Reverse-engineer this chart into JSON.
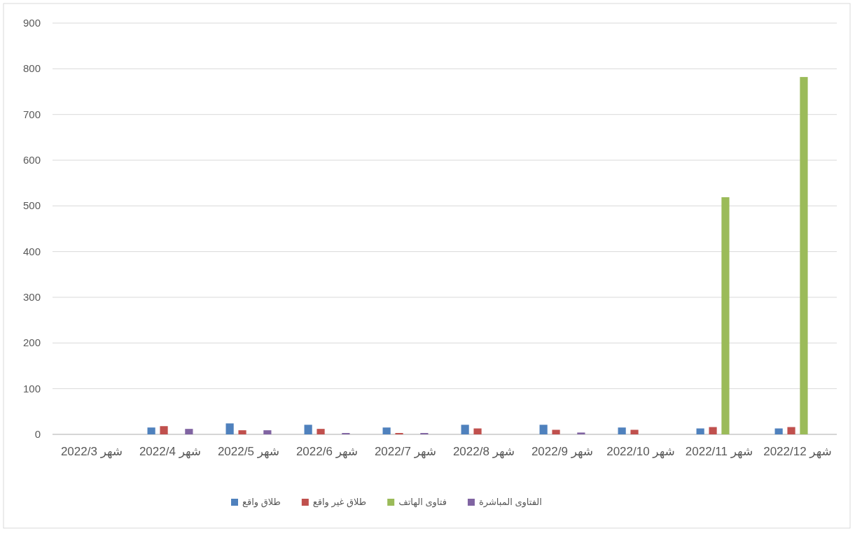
{
  "chart_data": {
    "type": "bar",
    "categories": [
      "شهر 2022/3",
      "شهر 2022/4",
      "شهر 2022/5",
      "شهر 2022/6",
      "شهر 2022/7",
      "شهر 2022/8",
      "شهر 2022/9",
      "شهر 2022/10",
      "شهر 2022/11",
      "شهر 2022/12"
    ],
    "series": [
      {
        "name": "طلاق واقع",
        "color": "#4f81bd",
        "values": [
          null,
          15,
          24,
          21,
          15,
          21,
          21,
          15,
          13,
          13
        ]
      },
      {
        "name": "طلاق غير واقع",
        "color": "#c0504d",
        "values": [
          null,
          18,
          9,
          12,
          3,
          13,
          10,
          10,
          16,
          16
        ]
      },
      {
        "name": "فتاوى الهاتف",
        "color": "#9bbb59",
        "values": [
          null,
          null,
          null,
          null,
          null,
          null,
          null,
          null,
          519,
          782
        ]
      },
      {
        "name": "الفتاوى المباشرة",
        "color": "#8064a2",
        "values": [
          null,
          12,
          9,
          3,
          3,
          null,
          4,
          null,
          null,
          null
        ]
      }
    ],
    "ylim": [
      0,
      900
    ],
    "yticks": [
      0,
      100,
      200,
      300,
      400,
      500,
      600,
      700,
      800,
      900
    ],
    "grid": "y",
    "legend": "bottom"
  }
}
